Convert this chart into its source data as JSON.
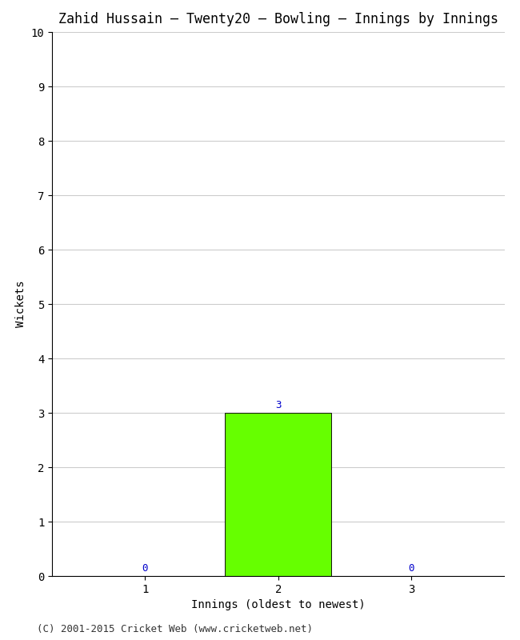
{
  "title": "Zahid Hussain – Twenty20 – Bowling – Innings by Innings",
  "xlabel": "Innings (oldest to newest)",
  "ylabel": "Wickets",
  "categories": [
    1,
    2,
    3
  ],
  "values": [
    0,
    3,
    0
  ],
  "bar_color": "#66ff00",
  "bar_edge_color": "#111111",
  "ylim": [
    0,
    10
  ],
  "yticks": [
    0,
    1,
    2,
    3,
    4,
    5,
    6,
    7,
    8,
    9,
    10
  ],
  "xticks": [
    1,
    2,
    3
  ],
  "background_color": "#ffffff",
  "grid_color": "#cccccc",
  "annotation_color": "#0000cc",
  "footer": "(C) 2001-2015 Cricket Web (www.cricketweb.net)",
  "title_fontsize": 12,
  "axis_label_fontsize": 10,
  "tick_fontsize": 10,
  "annotation_fontsize": 9,
  "footer_fontsize": 9,
  "bar_width": 0.8,
  "xlim": [
    0.3,
    3.7
  ]
}
